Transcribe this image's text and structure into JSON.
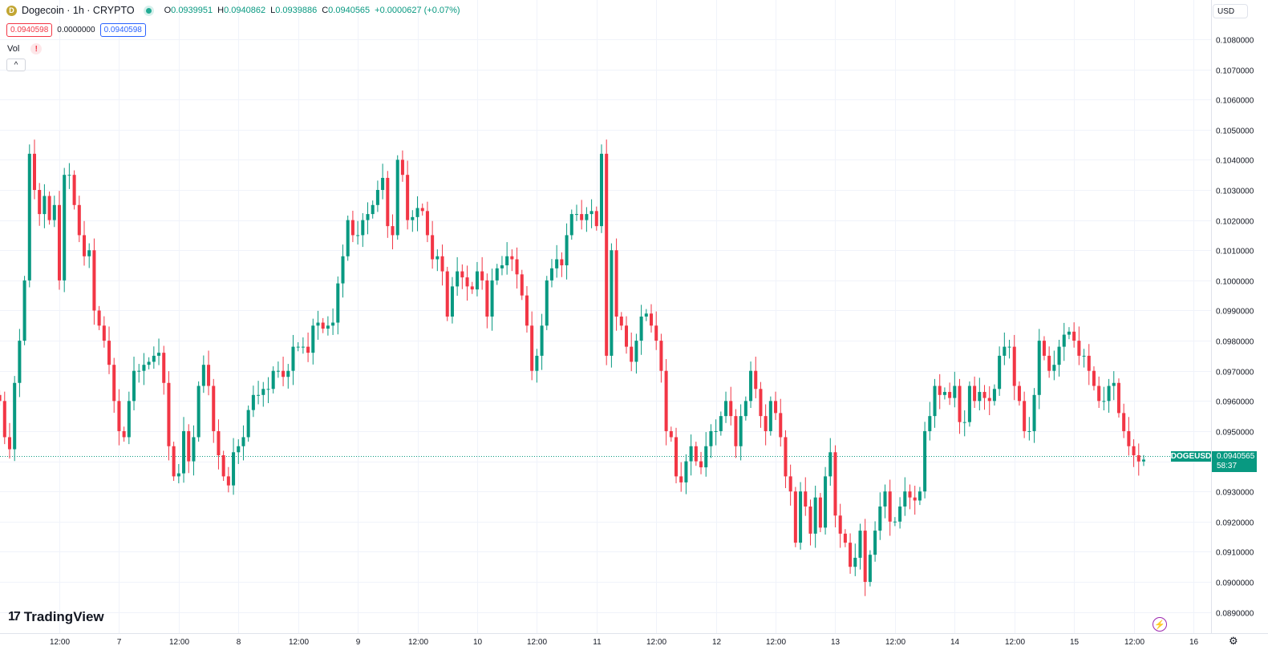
{
  "header": {
    "coin_icon_letter": "D",
    "title": "Dogecoin · 1h · CRYPTO",
    "ohlc": {
      "open_label": "O",
      "open": "0.0939951",
      "high_label": "H",
      "high": "0.0940862",
      "low_label": "L",
      "low": "0.0939886",
      "close_label": "C",
      "close": "0.0940565",
      "change": "+0.0000627 (+0.07%)"
    },
    "bid": "0.0940598",
    "spread": "0.0000000",
    "ask": "0.0940598",
    "vol_label": "Vol",
    "vol_warning": "!",
    "collapse_label": "^"
  },
  "currency": "USD",
  "last_price": {
    "symbol": "DOGEUSD",
    "price": "0.0940565",
    "countdown": "58:37"
  },
  "brand": {
    "logo_mark": "17",
    "name": "TradingView"
  },
  "colors": {
    "up": "#089981",
    "down": "#f23645",
    "grid": "#f0f3fa",
    "axis_text": "#131722"
  },
  "chart_data": {
    "type": "candlestick",
    "title": "Dogecoin · 1h · CRYPTO",
    "ylim": [
      0.0883,
      0.1093
    ],
    "y_ticks": [
      "0.0890000",
      "0.0900000",
      "0.0910000",
      "0.0920000",
      "0.0930000",
      "0.0940000",
      "0.0950000",
      "0.0960000",
      "0.0970000",
      "0.0980000",
      "0.0990000",
      "0.1000000",
      "0.1010000",
      "0.1020000",
      "0.1030000",
      "0.1040000",
      "0.1050000",
      "0.1060000",
      "0.1070000",
      "0.1080000"
    ],
    "x_ticks": [
      {
        "label": "12:00",
        "index": 12
      },
      {
        "label": "7",
        "index": 24
      },
      {
        "label": "12:00",
        "index": 36
      },
      {
        "label": "8",
        "index": 48
      },
      {
        "label": "12:00",
        "index": 60
      },
      {
        "label": "9",
        "index": 72
      },
      {
        "label": "12:00",
        "index": 84
      },
      {
        "label": "10",
        "index": 96
      },
      {
        "label": "12:00",
        "index": 108
      },
      {
        "label": "11",
        "index": 120
      },
      {
        "label": "12:00",
        "index": 132
      },
      {
        "label": "12",
        "index": 144
      },
      {
        "label": "12:00",
        "index": 156
      },
      {
        "label": "13",
        "index": 168
      },
      {
        "label": "12:00",
        "index": 180
      },
      {
        "label": "14",
        "index": 192
      },
      {
        "label": "12:00",
        "index": 204
      },
      {
        "label": "15",
        "index": 216
      },
      {
        "label": "12:00",
        "index": 228
      },
      {
        "label": "16",
        "index": 240
      }
    ],
    "close_sequence": [
      0.096,
      0.0948,
      0.0944,
      0.0966,
      0.098,
      0.1,
      0.1042,
      0.103,
      0.1022,
      0.1028,
      0.102,
      0.1025,
      0.1,
      0.1035,
      0.1035,
      0.1025,
      0.1015,
      0.1008,
      0.101,
      0.099,
      0.0985,
      0.098,
      0.0972,
      0.096,
      0.095,
      0.0948,
      0.096,
      0.097,
      0.097,
      0.0972,
      0.0973,
      0.0975,
      0.0976,
      0.0966,
      0.0945,
      0.0935,
      0.0936,
      0.095,
      0.094,
      0.0948,
      0.0965,
      0.0972,
      0.0965,
      0.095,
      0.0942,
      0.0935,
      0.0932,
      0.0943,
      0.0945,
      0.0948,
      0.0957,
      0.0962,
      0.0962,
      0.0964,
      0.0964,
      0.097,
      0.097,
      0.0968,
      0.097,
      0.0978,
      0.0978,
      0.0978,
      0.0976,
      0.0985,
      0.0986,
      0.0984,
      0.0985,
      0.0986,
      0.0999,
      0.1008,
      0.102,
      0.1015,
      0.1015,
      0.102,
      0.1022,
      0.1025,
      0.103,
      0.1034,
      0.1018,
      0.1015,
      0.104,
      0.1035,
      0.102,
      0.1021,
      0.1024,
      0.1023,
      0.1015,
      0.1007,
      0.1008,
      0.1003,
      0.0988,
      0.0998,
      0.1003,
      0.1001,
      0.0998,
      0.0997,
      0.1003,
      0.1,
      0.0988,
      0.1,
      0.1004,
      0.1005,
      0.1008,
      0.1007,
      0.1002,
      0.0995,
      0.0985,
      0.097,
      0.0975,
      0.0985,
      0.1,
      0.1004,
      0.1007,
      0.1005,
      0.1015,
      0.1022,
      0.1022,
      0.102,
      0.1022,
      0.1023,
      0.1018,
      0.1042,
      0.0975,
      0.101,
      0.0988,
      0.0985,
      0.0978,
      0.0973,
      0.098,
      0.0988,
      0.0989,
      0.0985,
      0.098,
      0.097,
      0.095,
      0.0948,
      0.0935,
      0.0933,
      0.094,
      0.0945,
      0.094,
      0.0938,
      0.0945,
      0.095,
      0.095,
      0.0955,
      0.096,
      0.0955,
      0.0945,
      0.0955,
      0.096,
      0.097,
      0.0964,
      0.0955,
      0.095,
      0.096,
      0.0956,
      0.0948,
      0.0935,
      0.093,
      0.0913,
      0.093,
      0.0925,
      0.0916,
      0.0928,
      0.0918,
      0.0935,
      0.0943,
      0.0922,
      0.0916,
      0.0913,
      0.0905,
      0.0908,
      0.0917,
      0.09,
      0.0909,
      0.0917,
      0.0925,
      0.093,
      0.092,
      0.092,
      0.0925,
      0.093,
      0.0928,
      0.0927,
      0.093,
      0.095,
      0.0955,
      0.0965,
      0.0962,
      0.0963,
      0.0961,
      0.0965,
      0.0953,
      0.0953,
      0.0965,
      0.096,
      0.0963,
      0.0961,
      0.096,
      0.0964,
      0.0975,
      0.0978,
      0.0978,
      0.0965,
      0.096,
      0.095,
      0.095,
      0.0962,
      0.098,
      0.0975,
      0.097,
      0.0972,
      0.0978,
      0.0982,
      0.0983,
      0.098,
      0.0975,
      0.0975,
      0.097,
      0.0965,
      0.096,
      0.096,
      0.0965,
      0.0966,
      0.0956,
      0.095,
      0.0945,
      0.0942,
      0.0939951,
      0.0940565
    ]
  }
}
